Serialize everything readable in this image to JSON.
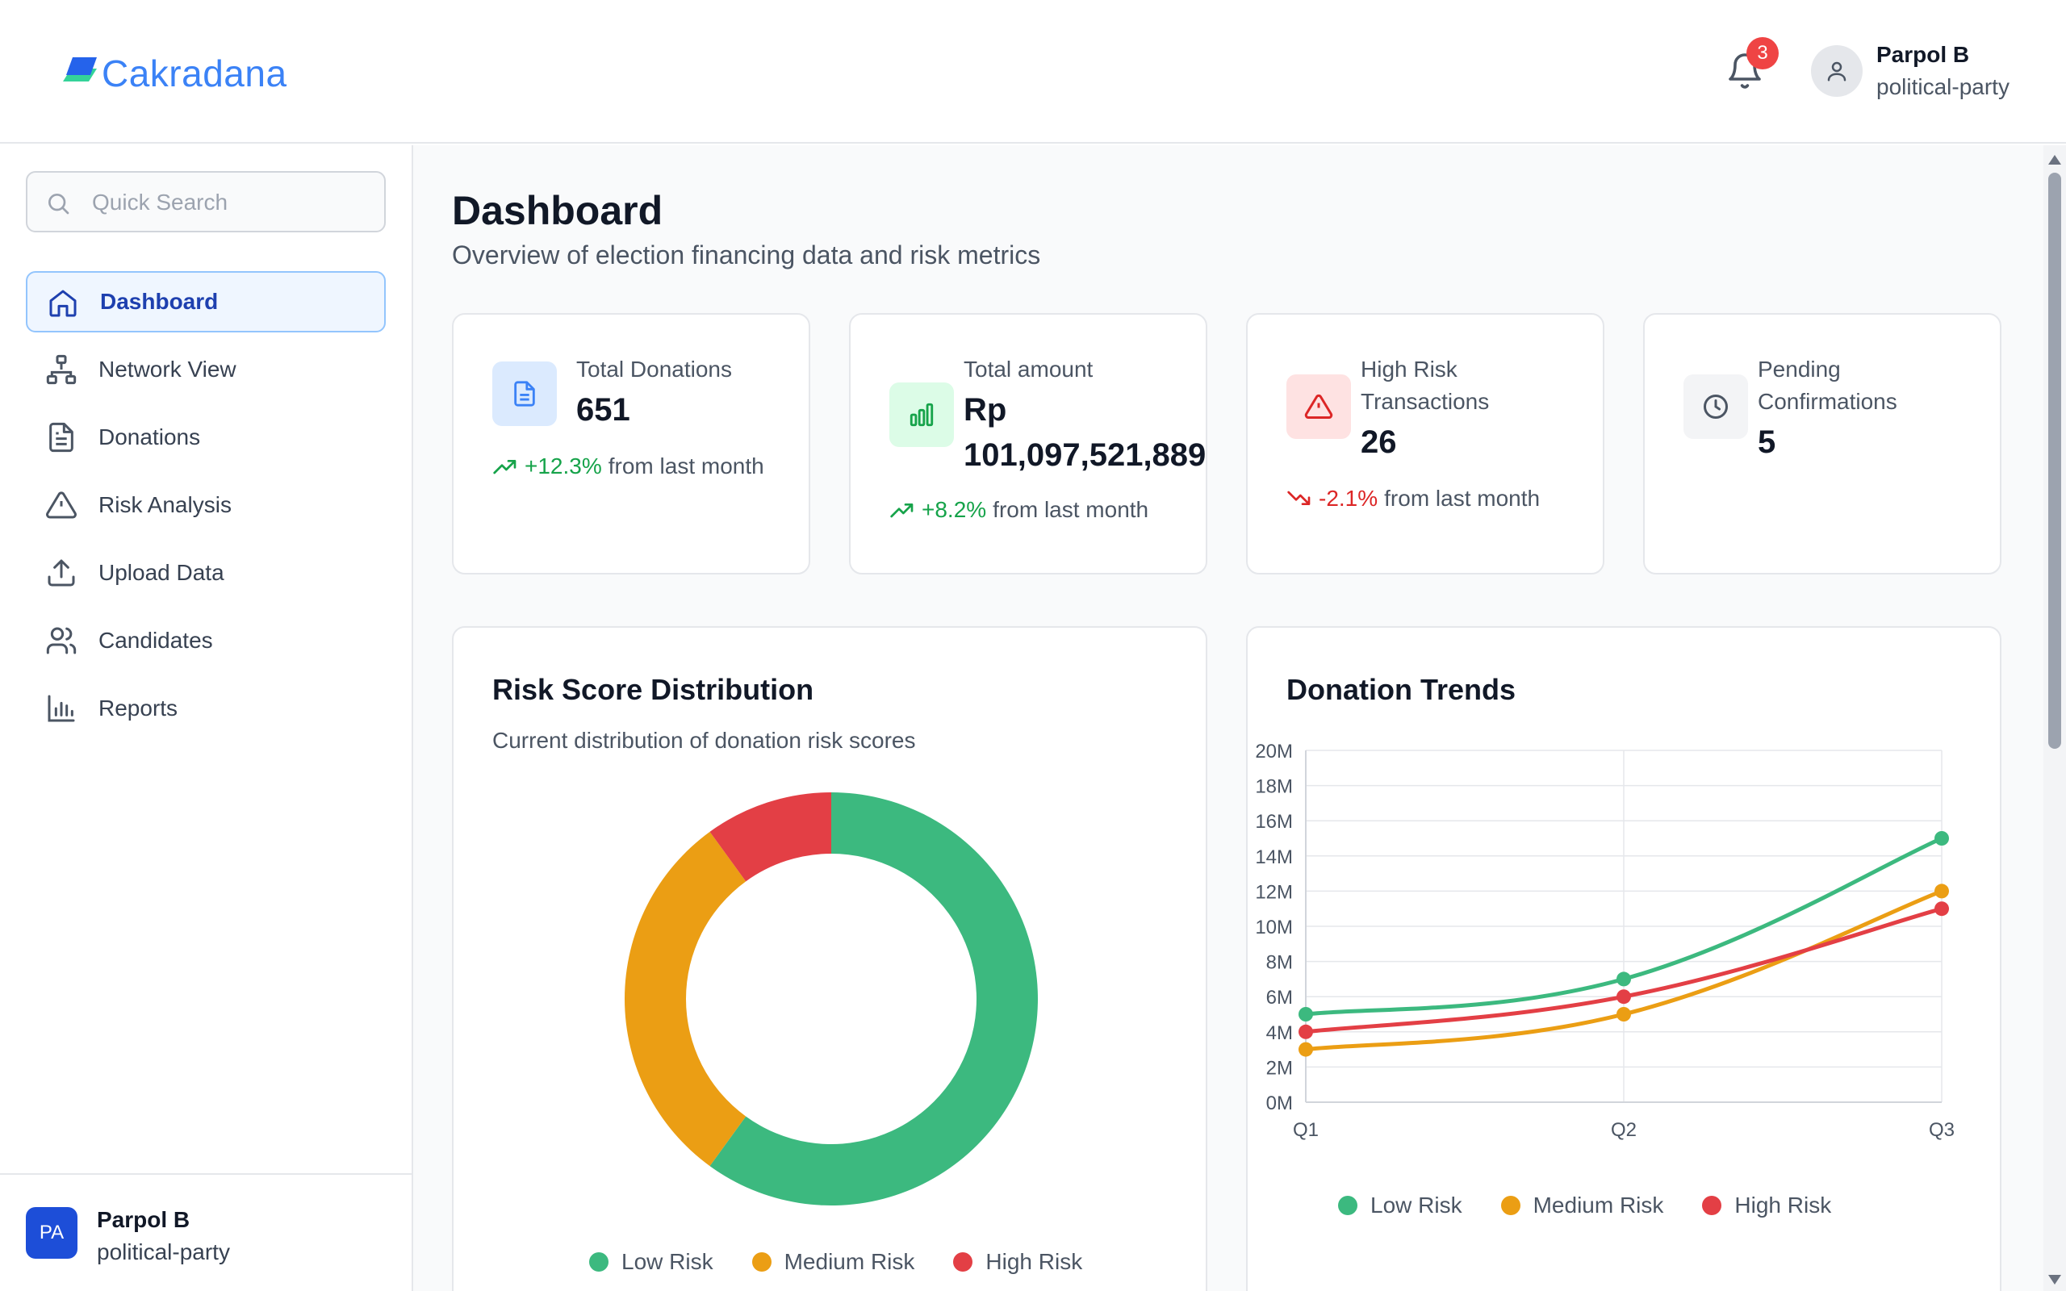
{
  "brand": {
    "name": "Cakradana"
  },
  "header": {
    "notification_count": "3",
    "user_name": "Parpol B",
    "user_role": "political-party"
  },
  "sidebar": {
    "search_placeholder": "Quick Search",
    "items": [
      {
        "label": "Dashboard",
        "icon": "home-icon",
        "active": true
      },
      {
        "label": "Network View",
        "icon": "network-icon"
      },
      {
        "label": "Donations",
        "icon": "document-icon"
      },
      {
        "label": "Risk Analysis",
        "icon": "warning-icon"
      },
      {
        "label": "Upload Data",
        "icon": "upload-icon"
      },
      {
        "label": "Candidates",
        "icon": "users-icon"
      },
      {
        "label": "Reports",
        "icon": "bar-chart-icon"
      }
    ],
    "footer": {
      "initials": "PA",
      "name": "Parpol B",
      "role": "political-party"
    }
  },
  "page": {
    "title": "Dashboard",
    "subtitle": "Overview of election financing data and risk metrics"
  },
  "stats": [
    {
      "label": "Total Donations",
      "value": "651",
      "trend": "+12.3%",
      "trend_text": "from last month",
      "direction": "up",
      "icon": "document-icon",
      "color": "#3b82f6"
    },
    {
      "label": "Total amount",
      "value_line1": "Rp",
      "value_line2": "101,097,521,889",
      "trend": "+8.2%",
      "trend_text": "from last month",
      "direction": "up",
      "icon": "bar-chart-icon",
      "color": "#16a34a"
    },
    {
      "label_line1": "High Risk",
      "label_line2": "Transactions",
      "value": "26",
      "trend": "-2.1%",
      "trend_text": "from last month",
      "direction": "down",
      "icon": "warning-icon",
      "color": "#dc2626"
    },
    {
      "label_line1": "Pending",
      "label_line2": "Confirmations",
      "value": "5",
      "icon": "clock-icon",
      "color": "#4b5563"
    }
  ],
  "colors": {
    "low": "#3cb97f",
    "medium": "#eb9e14",
    "high": "#e33f45"
  },
  "chart_data": [
    {
      "type": "pie",
      "title": "Risk Score Distribution",
      "subtitle": "Current distribution of donation risk scores",
      "categories": [
        "Low Risk",
        "Medium Risk",
        "High Risk"
      ],
      "values": [
        60,
        30,
        10
      ],
      "legend": "bottom"
    },
    {
      "type": "line",
      "title": "Donation Trends",
      "categories": [
        "Q1",
        "Q2",
        "Q3"
      ],
      "series": [
        {
          "name": "Low Risk",
          "values": [
            5,
            7,
            15
          ]
        },
        {
          "name": "Medium Risk",
          "values": [
            3,
            5,
            12
          ]
        },
        {
          "name": "High Risk",
          "values": [
            4,
            6,
            11
          ]
        }
      ],
      "y_ticks": [
        "0M",
        "2M",
        "4M",
        "6M",
        "8M",
        "10M",
        "12M",
        "14M",
        "16M",
        "18M",
        "20M"
      ],
      "ylim": [
        0,
        20
      ],
      "grid": true,
      "legend": "bottom"
    }
  ]
}
